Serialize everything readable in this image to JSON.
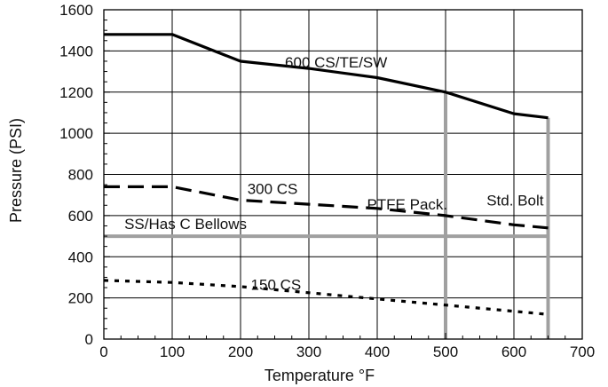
{
  "chart_data": {
    "type": "line",
    "title": "",
    "xlabel": "Temperature °F",
    "ylabel": "Pressure (PSI)",
    "xlim": [
      0,
      700
    ],
    "ylim": [
      0,
      1600
    ],
    "xticks": [
      0,
      100,
      200,
      300,
      400,
      500,
      600,
      700
    ],
    "yticks": [
      0,
      200,
      400,
      600,
      800,
      1000,
      1200,
      1400,
      1600
    ],
    "grid": true,
    "legend": "none",
    "series": [
      {
        "name": "600 CS/TE/SW",
        "style": "solid",
        "color": "#000000",
        "x": [
          0,
          100,
          200,
          300,
          400,
          500,
          600,
          650
        ],
        "y": [
          1480,
          1480,
          1350,
          1315,
          1270,
          1200,
          1095,
          1075
        ]
      },
      {
        "name": "300 CS",
        "style": "dashed",
        "color": "#000000",
        "x": [
          0,
          100,
          200,
          300,
          400,
          500,
          600,
          650
        ],
        "y": [
          740,
          740,
          675,
          655,
          635,
          600,
          555,
          540
        ]
      },
      {
        "name": "150 CS",
        "style": "dotted",
        "color": "#000000",
        "x": [
          0,
          100,
          200,
          300,
          400,
          500,
          600,
          650
        ],
        "y": [
          285,
          275,
          255,
          225,
          195,
          165,
          135,
          120
        ]
      },
      {
        "name": "SS/Has C Bellows",
        "style": "solid",
        "color": "#a0a0a0",
        "x": [
          0,
          650
        ],
        "y": [
          500,
          500
        ]
      },
      {
        "name": "PTFE Pack.",
        "style": "solid",
        "color": "#a0a0a0",
        "x": [
          500,
          500
        ],
        "y": [
          0,
          1200
        ]
      },
      {
        "name": "Std. Bolt",
        "style": "solid",
        "color": "#a0a0a0",
        "x": [
          650,
          650
        ],
        "y": [
          0,
          1075
        ]
      }
    ],
    "annotations": [
      {
        "text": "600 CS/TE/SW",
        "x": 265,
        "y": 1320
      },
      {
        "text": "300 CS",
        "x": 210,
        "y": 705
      },
      {
        "text": "PTFE Pack.",
        "x": 385,
        "y": 630
      },
      {
        "text": "Std. Bolt",
        "x": 560,
        "y": 650
      },
      {
        "text": "SS/Has C Bellows",
        "x": 30,
        "y": 535
      },
      {
        "text": "150 CS",
        "x": 215,
        "y": 240
      }
    ]
  }
}
